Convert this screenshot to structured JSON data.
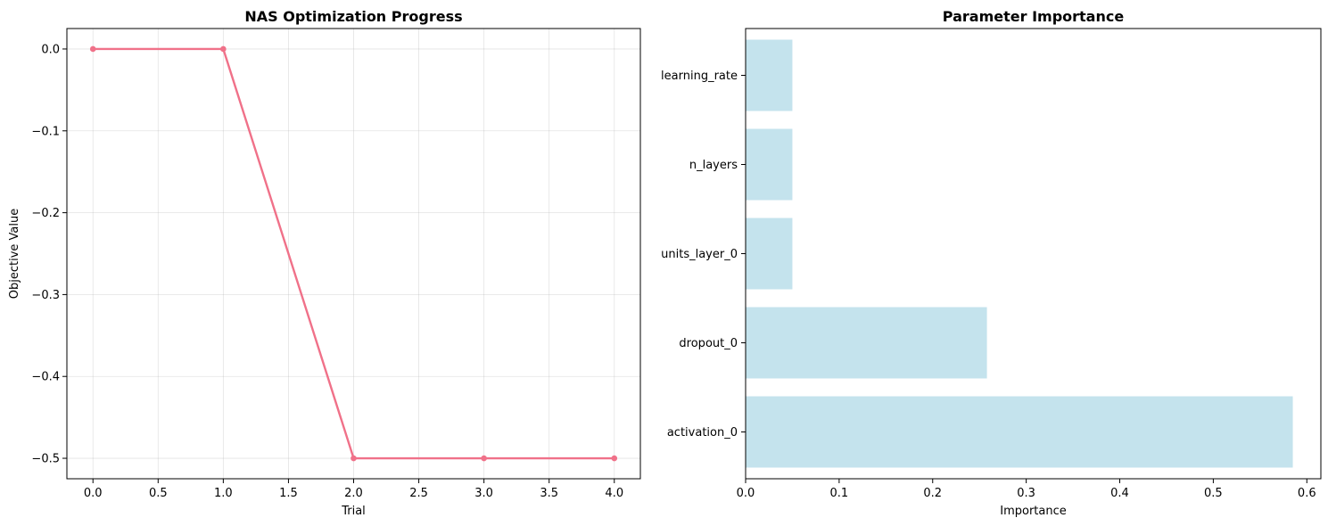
{
  "chart_data": [
    {
      "type": "line",
      "title": "NAS Optimization Progress",
      "xlabel": "Trial",
      "ylabel": "Objective Value",
      "x": [
        0,
        1,
        2,
        3,
        4
      ],
      "series": [
        {
          "values": [
            0.0,
            0.0,
            -0.5,
            -0.5,
            -0.5
          ],
          "color": "#f07189"
        }
      ],
      "xlim": [
        -0.2,
        4.2
      ],
      "ylim": [
        -0.525,
        0.025
      ],
      "xticks": [
        "0.0",
        "0.5",
        "1.0",
        "1.5",
        "2.0",
        "2.5",
        "3.0",
        "3.5",
        "4.0"
      ],
      "yticks": [
        "0.0",
        "−0.1",
        "−0.2",
        "−0.3",
        "−0.4",
        "−0.5"
      ],
      "grid": true
    },
    {
      "type": "bar",
      "orientation": "horizontal",
      "title": "Parameter Importance",
      "xlabel": "Importance",
      "ylabel": "",
      "categories": [
        "activation_0",
        "dropout_0",
        "units_layer_0",
        "n_layers",
        "learning_rate"
      ],
      "values": [
        0.585,
        0.258,
        0.05,
        0.05,
        0.05
      ],
      "color": "#add8e6",
      "xlim": [
        0,
        0.615
      ],
      "xticks": [
        "0.0",
        "0.1",
        "0.2",
        "0.3",
        "0.4",
        "0.5",
        "0.6"
      ],
      "grid": false
    }
  ]
}
